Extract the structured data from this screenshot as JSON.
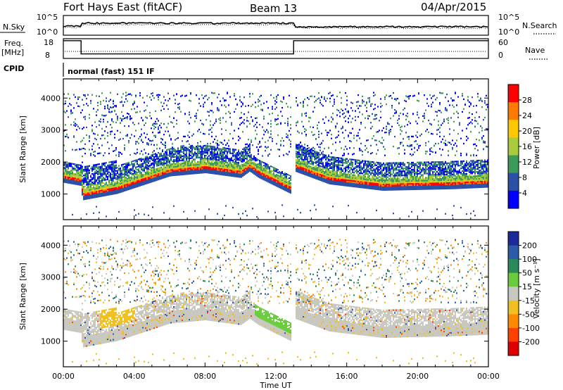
{
  "header": {
    "station": "Fort Hays East (fitACF)",
    "beam": "Beam 13",
    "date": "04/Apr/2015"
  },
  "aux_panel": {
    "nsky_label": "N.Sky",
    "nsky_ticks": [
      "10^5",
      "10^0"
    ],
    "nsearch_label": "N.Search",
    "nsearch_ticks": [
      "10^5",
      "10^0"
    ],
    "freq_label": "Freq.",
    "freq_unit": "[MHz]",
    "freq_ticks": [
      "18",
      "8"
    ],
    "nave_label": "Nave",
    "nave_ticks": [
      "60",
      "0"
    ],
    "cpid_label": "CPID",
    "cpid_value": "normal (fast) 151 IF"
  },
  "colorbars": {
    "power": {
      "title": "Power [dB]",
      "ticks": [
        "28",
        "24",
        "20",
        "16",
        "12",
        "8",
        "4"
      ],
      "colors": [
        "#ff0000",
        "#ff7a00",
        "#ffc800",
        "#a8cc3c",
        "#3c9a5a",
        "#2a50a8",
        "#0000ff"
      ]
    },
    "velocity": {
      "title": "Velocity [m s⁻¹]",
      "ticks": [
        "200",
        "100",
        "50",
        "15",
        "-15",
        "-50",
        "-100",
        "-200"
      ],
      "colors": [
        "#1a2a9a",
        "#2a5aa8",
        "#2a8a5a",
        "#6acc3c",
        "#c8c8c0",
        "#f0c020",
        "#ff8a00",
        "#ff4000",
        "#e00000"
      ]
    }
  },
  "chart_data": [
    {
      "type": "heatmap",
      "title": "",
      "xlabel": "Time UT",
      "ylabel": "Slant Range [km]",
      "x_ticks": [
        "00:00",
        "04:00",
        "08:00",
        "12:00",
        "16:00",
        "20:00",
        "00:00"
      ],
      "y_ticks": [
        "4000",
        "3000",
        "2000",
        "1000"
      ],
      "ylim": [
        200,
        4600
      ],
      "colorbar": "Power [dB]",
      "ridge": {
        "x_hours": [
          0,
          1.0,
          1.05,
          3,
          6,
          8,
          10,
          10.5,
          11,
          12.9,
          13.05,
          15,
          18,
          22,
          24
        ],
        "range_km": [
          1550,
          1450,
          1000,
          1200,
          1750,
          1850,
          1700,
          1900,
          1700,
          1180,
          1900,
          1500,
          1300,
          1350,
          1400
        ]
      }
    },
    {
      "type": "heatmap",
      "title": "",
      "xlabel": "Time UT",
      "ylabel": "Slant Range [km]",
      "x_ticks": [
        "00:00",
        "04:00",
        "08:00",
        "12:00",
        "16:00",
        "20:00",
        "00:00"
      ],
      "y_ticks": [
        "4000",
        "3000",
        "2000",
        "1000"
      ],
      "ylim": [
        200,
        4600
      ],
      "colorbar": "Velocity [m s⁻¹]"
    },
    {
      "type": "line",
      "title": "",
      "series": [
        {
          "name": "Freq.",
          "x": [
            0,
            1.0,
            1.0,
            13.0,
            13.0,
            24
          ],
          "values": [
            17.0,
            17.0,
            10.3,
            10.3,
            17.0,
            17.0
          ]
        }
      ],
      "ylim": [
        8,
        18
      ]
    }
  ]
}
